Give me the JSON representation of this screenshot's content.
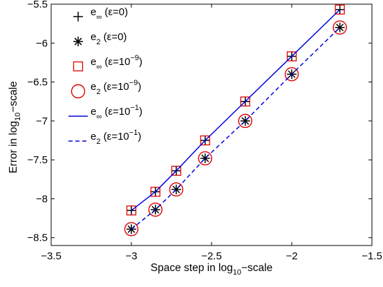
{
  "chart_data": {
    "type": "line",
    "xlabel": {
      "main": "Space step in log",
      "sub": "10",
      "tail": "−scale"
    },
    "ylabel": {
      "main": "Error in log",
      "sub": "10",
      "tail": "−scale"
    },
    "xlim": [
      -3.5,
      -1.5
    ],
    "ylim": [
      -8.6,
      -5.5
    ],
    "x_ticks": [
      -3.5,
      -3,
      -2.5,
      -2,
      -1.5
    ],
    "x_tick_labels": [
      "−3.5",
      "−3",
      "−2.5",
      "−2",
      "−1.5"
    ],
    "y_ticks": [
      -8.5,
      -8,
      -7.5,
      -7,
      -6.5,
      -6,
      -5.5
    ],
    "y_tick_labels": [
      "−8.5",
      "−8",
      "−7.5",
      "−7",
      "−6.5",
      "−6",
      "−5.5"
    ],
    "grid": false,
    "legend_position": "top-left",
    "x": [
      -3.0,
      -2.85,
      -2.72,
      -2.54,
      -2.29,
      -2.0,
      -1.7
    ],
    "series": [
      {
        "name": "e∞ (ε=0)",
        "label_main": "e",
        "label_sub": "∞",
        "label_sup": "",
        "label_paren": " (ε=0)",
        "label_after": "",
        "marker": "plus",
        "line": "none",
        "color": "#000000",
        "values": [
          -8.15,
          -7.91,
          -7.64,
          -7.25,
          -6.75,
          -6.17,
          -5.57
        ]
      },
      {
        "name": "e2 (ε=0)",
        "label_main": "e",
        "label_sub": "2",
        "label_sup": "",
        "label_paren": " (ε=0)",
        "label_after": "",
        "marker": "asterisk",
        "line": "none",
        "color": "#000000",
        "values": [
          -8.39,
          -8.14,
          -7.88,
          -7.48,
          -7.0,
          -6.4,
          -5.8
        ]
      },
      {
        "name": "e∞ (ε=10−9)",
        "label_main": "e",
        "label_sub": "∞",
        "label_sup": "−9",
        "label_paren": " (ε=10",
        "label_after": ")",
        "marker": "square",
        "line": "none",
        "color": "#dd0000",
        "values": [
          -8.15,
          -7.91,
          -7.64,
          -7.25,
          -6.75,
          -6.17,
          -5.57
        ]
      },
      {
        "name": "e2 (ε=10−9)",
        "label_main": "e",
        "label_sub": "2",
        "label_sup": "−9",
        "label_paren": " (ε=10",
        "label_after": ")",
        "marker": "circle",
        "line": "none",
        "color": "#dd0000",
        "values": [
          -8.39,
          -8.14,
          -7.88,
          -7.48,
          -7.0,
          -6.4,
          -5.8
        ]
      },
      {
        "name": "e∞ (ε=10−1)",
        "label_main": "e",
        "label_sub": "∞",
        "label_sup": "−1",
        "label_paren": " (ε=10",
        "label_after": ")",
        "marker": "none",
        "line": "solid",
        "color": "#0000dd",
        "values": [
          -8.15,
          -7.91,
          -7.64,
          -7.25,
          -6.75,
          -6.17,
          -5.57
        ]
      },
      {
        "name": "e2 (ε=10−1)",
        "label_main": "e",
        "label_sub": "2",
        "label_sup": "−1",
        "label_paren": " (ε=10",
        "label_after": ")",
        "marker": "none",
        "line": "dashed",
        "color": "#0000dd",
        "values": [
          -8.39,
          -8.14,
          -7.88,
          -7.48,
          -7.0,
          -6.4,
          -5.8
        ]
      }
    ]
  }
}
